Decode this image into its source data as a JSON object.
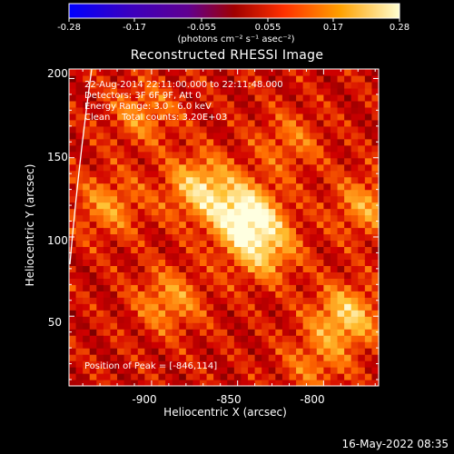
{
  "chart_data": {
    "type": "heatmap",
    "title": "Reconstructed RHESSI Image",
    "xlabel": "Heliocentric X (arcsec)",
    "ylabel": "Heliocentric Y (arcsec)",
    "xlim": [
      -948,
      -768
    ],
    "ylim": [
      6,
      206
    ],
    "x_ticks": [
      "-900",
      "-850",
      "-800"
    ],
    "y_ticks": [
      "50",
      "100",
      "150",
      "200"
    ],
    "colorbar": {
      "min": -0.28,
      "max": 0.28,
      "ticks": [
        "-0.28",
        "-0.17",
        "-0.055",
        "0.055",
        "0.17",
        "0.28"
      ],
      "units": "(photons cm⁻² s⁻¹ asec⁻²)"
    },
    "annotations": [
      "22-Aug-2014 22:11:00.000 to 22:11:48.000",
      "Detectors: 3F 6F 9F, Att 0",
      "Energy Range: 3.0 - 6.0 keV",
      "Clean    Total counts: 3.20E+03"
    ],
    "peak_label": "Position of Peak = [-846,114]",
    "peak": [
      -846,
      114
    ],
    "sources": [
      {
        "x": -846,
        "y": 114,
        "amp": 0.28
      },
      {
        "x": -872,
        "y": 132,
        "amp": 0.2
      },
      {
        "x": -835,
        "y": 92,
        "amp": 0.18
      },
      {
        "x": -787,
        "y": 50,
        "amp": 0.2
      },
      {
        "x": -890,
        "y": 60,
        "amp": 0.14
      },
      {
        "x": -925,
        "y": 120,
        "amp": 0.13
      },
      {
        "x": -775,
        "y": 120,
        "amp": 0.14
      },
      {
        "x": -905,
        "y": 178,
        "amp": 0.12
      },
      {
        "x": -820,
        "y": 160,
        "amp": 0.1
      },
      {
        "x": -805,
        "y": 20,
        "amp": 0.1
      }
    ],
    "colors": {
      "map": [
        "#000000",
        "#3a00a0",
        "#7a0000",
        "#d00000",
        "#ff6a00",
        "#ffc030",
        "#ffffe0"
      ]
    }
  },
  "footer": "16-May-2022 08:35"
}
